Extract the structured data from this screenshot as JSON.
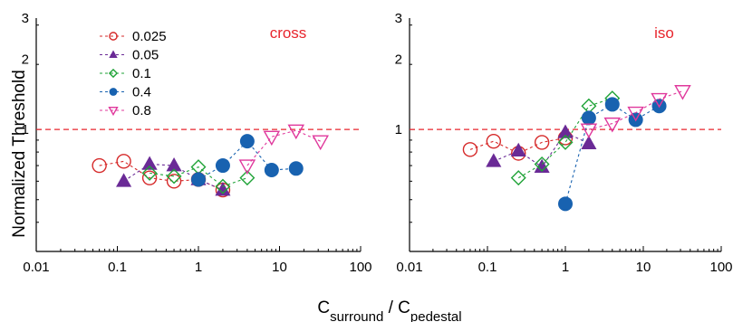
{
  "chart_data": [
    {
      "type": "scatter",
      "panel_label": "cross",
      "xscale": "log",
      "yscale": "log",
      "xlim": [
        0.01,
        100
      ],
      "ylim": [
        0.3,
        3
      ],
      "xticks": [
        "0.01",
        "0.1",
        "1",
        "10",
        "100"
      ],
      "yticks": [
        "1",
        "2",
        "3"
      ],
      "ylabel": "Normalized Threshold",
      "reference_line": 1,
      "reference_color": "#e8252d",
      "legend_position": "top-left",
      "series": [
        {
          "name": "0.025",
          "marker": "open-circle",
          "color": "#d62a2a",
          "x": [
            0.06,
            0.12,
            0.25,
            0.5,
            1,
            2
          ],
          "y": [
            0.7,
            0.73,
            0.62,
            0.6,
            0.61,
            0.55
          ]
        },
        {
          "name": "0.05",
          "marker": "filled-triangle-up",
          "color": "#6a2a96",
          "x": [
            0.12,
            0.25,
            0.5,
            1,
            2
          ],
          "y": [
            0.6,
            0.71,
            0.7,
            0.61,
            0.55
          ]
        },
        {
          "name": "0.1",
          "marker": "open-diamond",
          "color": "#1fa337",
          "x": [
            0.25,
            0.5,
            1,
            2,
            4
          ],
          "y": [
            0.65,
            0.63,
            0.69,
            0.57,
            0.62
          ]
        },
        {
          "name": "0.4",
          "marker": "filled-circle",
          "color": "#1862b0",
          "x": [
            1,
            2,
            4,
            8,
            16
          ],
          "y": [
            0.61,
            0.7,
            0.89,
            0.67,
            0.68
          ]
        },
        {
          "name": "0.8",
          "marker": "open-triangle-down",
          "color": "#e0389c",
          "x": [
            4,
            8,
            16,
            32
          ],
          "y": [
            0.7,
            0.93,
            0.99,
            0.89
          ]
        }
      ]
    },
    {
      "type": "scatter",
      "panel_label": "iso",
      "xscale": "log",
      "yscale": "log",
      "xlim": [
        0.01,
        100
      ],
      "ylim": [
        0.3,
        3
      ],
      "xticks": [
        "0.01",
        "0.1",
        "1",
        "10",
        "100"
      ],
      "yticks": [
        "1",
        "2",
        "3"
      ],
      "reference_line": 1,
      "reference_color": "#e8252d",
      "series": [
        {
          "name": "0.025",
          "marker": "open-circle",
          "color": "#d62a2a",
          "x": [
            0.06,
            0.12,
            0.25,
            0.5,
            1
          ],
          "y": [
            0.82,
            0.89,
            0.79,
            0.88,
            0.92
          ]
        },
        {
          "name": "0.05",
          "marker": "filled-triangle-up",
          "color": "#6a2a96",
          "x": [
            0.12,
            0.25,
            0.5,
            1,
            2
          ],
          "y": [
            0.73,
            0.81,
            0.69,
            0.97,
            0.87
          ]
        },
        {
          "name": "0.1",
          "marker": "open-diamond",
          "color": "#1fa337",
          "x": [
            0.25,
            0.5,
            1,
            2,
            4
          ],
          "y": [
            0.62,
            0.71,
            0.88,
            1.26,
            1.36
          ]
        },
        {
          "name": "0.4",
          "marker": "filled-circle",
          "color": "#1862b0",
          "x": [
            1,
            2,
            4,
            8,
            16
          ],
          "y": [
            0.48,
            1.12,
            1.28,
            1.1,
            1.26
          ]
        },
        {
          "name": "0.8",
          "marker": "open-triangle-down",
          "color": "#e0389c",
          "x": [
            2,
            4,
            8,
            16,
            32
          ],
          "y": [
            1.0,
            1.06,
            1.18,
            1.35,
            1.46
          ]
        }
      ]
    }
  ],
  "xlabel": {
    "main": "C",
    "sub1": "surround",
    "sep": " / C",
    "sub2": "pedestal"
  }
}
